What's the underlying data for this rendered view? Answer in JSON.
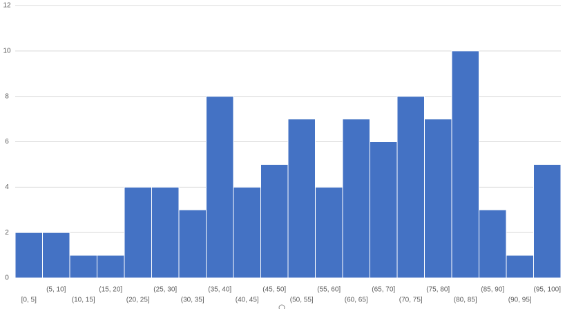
{
  "chart_data": {
    "type": "bar",
    "categories": [
      "[0, 5]",
      "(5, 10]",
      "(10, 15]",
      "(15, 20]",
      "(20, 25]",
      "(25, 30]",
      "(30, 35]",
      "(35, 40]",
      "(40, 45]",
      "(45, 50]",
      "(50, 55]",
      "(55, 60]",
      "(60, 65]",
      "(65, 70]",
      "(70, 75]",
      "(75, 80]",
      "(80, 85]",
      "(85, 90]",
      "(90, 95]",
      "(95, 100]"
    ],
    "values": [
      2,
      2,
      1,
      1,
      4,
      4,
      3,
      8,
      4,
      5,
      7,
      4,
      7,
      6,
      8,
      7,
      10,
      3,
      1,
      5
    ],
    "color": "#4472c4",
    "ylim": [
      0,
      12
    ],
    "yticks": [
      0,
      2,
      4,
      6,
      8,
      10,
      12
    ],
    "grid": true
  }
}
